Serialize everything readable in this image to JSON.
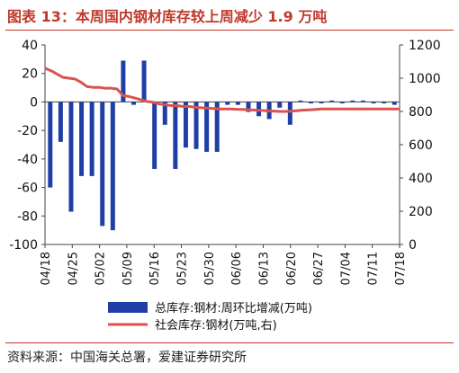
{
  "header": {
    "title": "图表 13：本周国内钢材库存较上周减少 1.9 万吨"
  },
  "footer": {
    "source": "资料来源：中国海关总署，爱建证券研究所"
  },
  "colors": {
    "accent": "#c0392b",
    "bar": "#1f3fa6",
    "line": "#d9534f"
  },
  "chart_data": {
    "type": "bar",
    "x_ticks": [
      "04/18",
      "04/25",
      "05/02",
      "05/09",
      "05/16",
      "05/23",
      "05/30",
      "06/06",
      "06/13",
      "06/20",
      "06/27",
      "07/04",
      "07/11",
      "07/18"
    ],
    "left_axis": {
      "min": -100,
      "max": 40,
      "ticks": [
        40,
        20,
        0,
        -20,
        -40,
        -60,
        -80,
        -100
      ]
    },
    "right_axis": {
      "min": 0,
      "max": 1200,
      "ticks": [
        1200,
        1000,
        800,
        600,
        400,
        200,
        0
      ]
    },
    "series": [
      {
        "name": "总库存:钢材:周环比增减(万吨)",
        "type": "bar",
        "axis": "left",
        "values": [
          -60,
          -28,
          -77,
          -52,
          -52,
          -87,
          -90,
          29,
          -2,
          29,
          -47,
          -16,
          -47,
          -32,
          -33,
          -35,
          -35,
          -2,
          -2,
          -7,
          -10,
          -12,
          -4,
          -16,
          1,
          -1,
          -1,
          1,
          -1,
          1,
          1,
          -1,
          -1,
          -2
        ]
      },
      {
        "name": "社会库存:钢材(万吨,右)",
        "type": "line",
        "axis": "right",
        "values": [
          1060,
          1045,
          1025,
          1005,
          1000,
          995,
          975,
          950,
          945,
          945,
          940,
          940,
          935,
          895,
          890,
          880,
          870,
          860,
          855,
          845,
          840,
          835,
          835,
          830,
          830,
          825,
          822,
          820,
          818,
          815,
          815,
          815,
          813,
          812,
          810,
          808,
          806,
          804,
          802,
          800,
          800,
          802,
          805,
          808,
          810,
          812,
          815,
          815,
          815,
          815,
          815,
          815,
          815,
          815,
          815,
          815,
          815,
          815,
          815,
          815
        ]
      }
    ],
    "legend_placement": "bottom"
  }
}
